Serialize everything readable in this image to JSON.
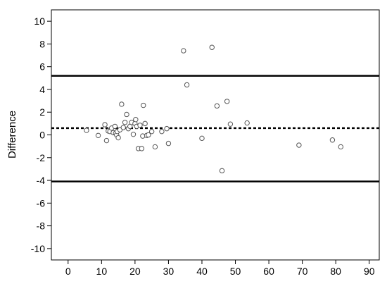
{
  "chart_data": {
    "type": "scatter",
    "ylabel": "Difference",
    "xlabel": "",
    "xlim": [
      -5,
      93
    ],
    "ylim": [
      -11,
      11
    ],
    "x_ticks": [
      0,
      10,
      20,
      30,
      40,
      50,
      60,
      70,
      80,
      90
    ],
    "x_tick_labels": [
      "0",
      "10",
      "20",
      "30",
      "40",
      "50",
      "60",
      "70",
      "80",
      "90"
    ],
    "y_ticks": [
      10,
      8,
      6,
      4,
      2,
      0,
      -2,
      -4,
      -6,
      -8,
      -10
    ],
    "y_tick_labels": [
      "10",
      "8",
      "6",
      "4",
      "2",
      "0",
      "-2",
      "-4",
      "-6",
      "-8",
      "-10"
    ],
    "grid": false,
    "reference_lines": {
      "upper_limit": 5.2,
      "mean": 0.6,
      "lower_limit": -4.1
    },
    "points": [
      {
        "x": 5.5,
        "y": 0.4
      },
      {
        "x": 9,
        "y": -0.05
      },
      {
        "x": 11,
        "y": 0.9
      },
      {
        "x": 11.5,
        "y": -0.5
      },
      {
        "x": 12,
        "y": 0.35
      },
      {
        "x": 12.5,
        "y": 0.3
      },
      {
        "x": 13,
        "y": 0.6
      },
      {
        "x": 13.5,
        "y": 0.2
      },
      {
        "x": 14,
        "y": 0.75
      },
      {
        "x": 14.2,
        "y": 0.15
      },
      {
        "x": 14.5,
        "y": 0.0
      },
      {
        "x": 14.7,
        "y": 0.3
      },
      {
        "x": 15,
        "y": -0.25
      },
      {
        "x": 15.5,
        "y": 0.45
      },
      {
        "x": 16,
        "y": 2.7
      },
      {
        "x": 16.5,
        "y": 0.65
      },
      {
        "x": 17,
        "y": 1.1
      },
      {
        "x": 17.5,
        "y": 1.8
      },
      {
        "x": 18,
        "y": 0.55
      },
      {
        "x": 18.5,
        "y": 0.75
      },
      {
        "x": 19,
        "y": 1.1
      },
      {
        "x": 19.5,
        "y": 0.05
      },
      {
        "x": 20,
        "y": 1.0
      },
      {
        "x": 20.2,
        "y": 1.35
      },
      {
        "x": 20.5,
        "y": 0.75
      },
      {
        "x": 21,
        "y": -1.2
      },
      {
        "x": 21.5,
        "y": 0.85
      },
      {
        "x": 22,
        "y": -1.2
      },
      {
        "x": 22.3,
        "y": -0.1
      },
      {
        "x": 22.5,
        "y": 2.6
      },
      {
        "x": 23,
        "y": 1.0
      },
      {
        "x": 23.5,
        "y": -0.05
      },
      {
        "x": 24,
        "y": 0.0
      },
      {
        "x": 25,
        "y": 0.3
      },
      {
        "x": 26,
        "y": -1.05
      },
      {
        "x": 28,
        "y": 0.3
      },
      {
        "x": 29.5,
        "y": 0.55
      },
      {
        "x": 30,
        "y": -0.75
      },
      {
        "x": 34.5,
        "y": 7.4
      },
      {
        "x": 35.5,
        "y": 4.4
      },
      {
        "x": 40,
        "y": -0.3
      },
      {
        "x": 43,
        "y": 7.7
      },
      {
        "x": 44.5,
        "y": 2.55
      },
      {
        "x": 46,
        "y": -3.15
      },
      {
        "x": 47.5,
        "y": 2.95
      },
      {
        "x": 48.5,
        "y": 0.95
      },
      {
        "x": 53.5,
        "y": 1.05
      },
      {
        "x": 69,
        "y": -0.9
      },
      {
        "x": 79,
        "y": -0.45
      },
      {
        "x": 81.5,
        "y": -1.05
      }
    ]
  }
}
